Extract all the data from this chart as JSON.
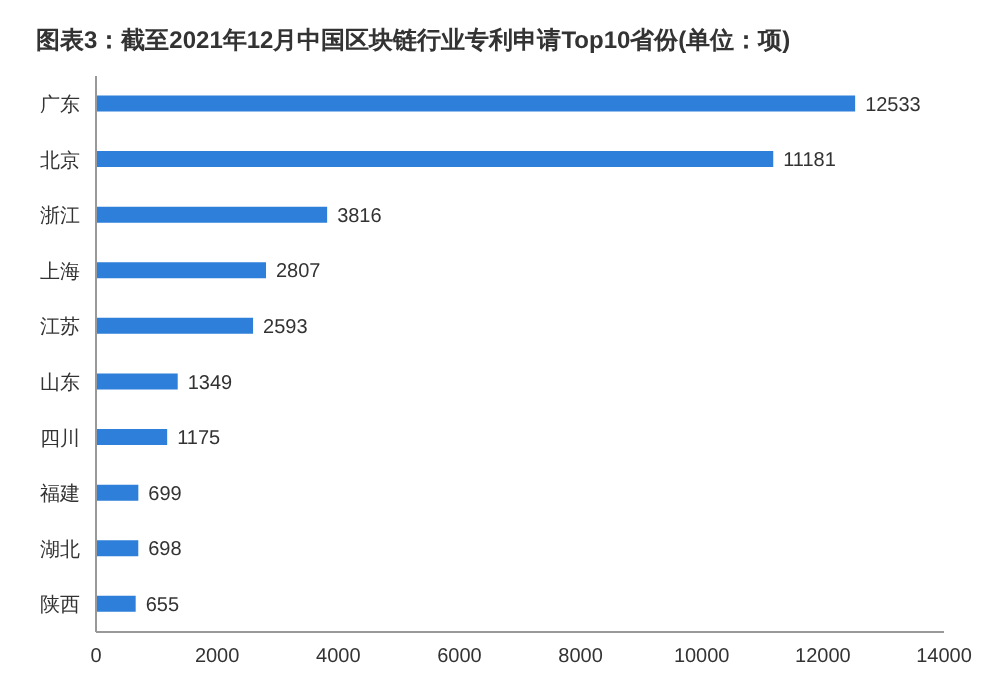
{
  "chart_data": {
    "type": "bar",
    "orientation": "horizontal",
    "title": "图表3：截至2021年12月中国区块链行业专利申请Top10省份(单位：项)",
    "categories": [
      "广东",
      "北京",
      "浙江",
      "上海",
      "江苏",
      "山东",
      "四川",
      "福建",
      "湖北",
      "陕西"
    ],
    "values": [
      12533,
      11181,
      3816,
      2807,
      2593,
      1349,
      1175,
      699,
      698,
      655
    ],
    "color": "#2e7fd9",
    "xlim": [
      0,
      14000
    ],
    "xticks": [
      0,
      2000,
      4000,
      6000,
      8000,
      10000,
      12000,
      14000
    ],
    "data_labels": true
  }
}
